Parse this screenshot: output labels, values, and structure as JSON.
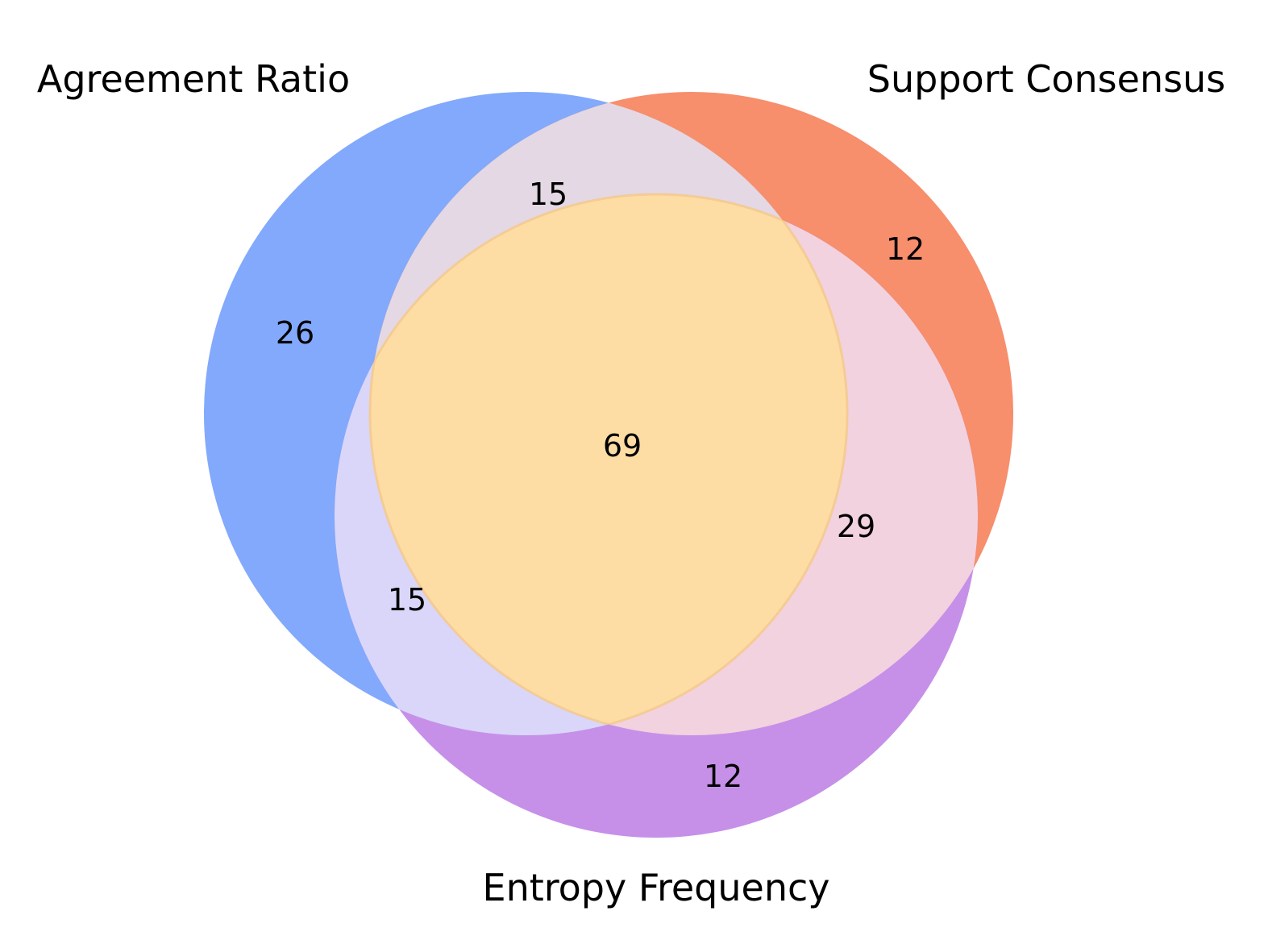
{
  "venn": {
    "sets": [
      {
        "id": "A",
        "label": "Agreement Ratio",
        "color": "#82a9fb"
      },
      {
        "id": "B",
        "label": "Support Consensus",
        "color": "#f78e6c"
      },
      {
        "id": "C",
        "label": "Entropy Frequency",
        "color": "#c690e9"
      }
    ],
    "regions": {
      "A_only": "26",
      "B_only": "12",
      "C_only": "12",
      "A_and_B": "15",
      "A_and_C": "15",
      "B_and_C": "29",
      "A_B_C": "69"
    },
    "overlap_colors": {
      "A_and_B": "#e3d8e4",
      "A_and_C": "#dad6f9",
      "B_and_C": "#f2d2de",
      "A_B_C": "#fedda5"
    }
  }
}
